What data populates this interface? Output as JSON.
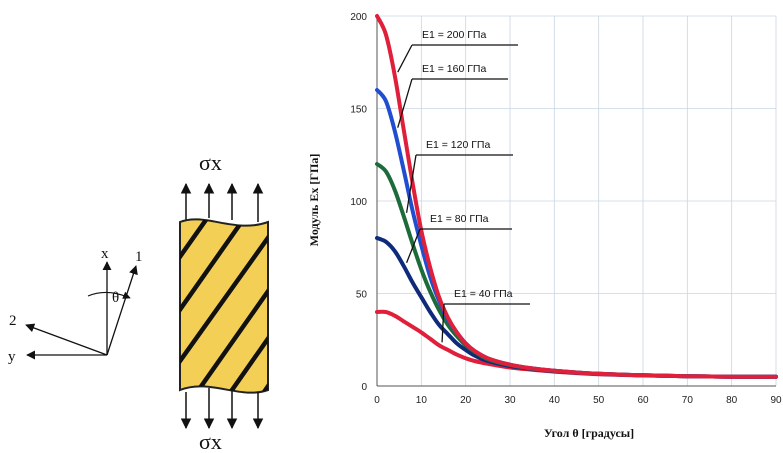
{
  "diagram": {
    "axis_x": "x",
    "axis_y": "y",
    "axis_1": "1",
    "axis_2": "2",
    "angle": "θ",
    "stress_top": "σx",
    "stress_bottom": "σx",
    "colors": {
      "lamina": "#f3cf56",
      "lamina_edge": "#222222"
    }
  },
  "chart_data": {
    "type": "line",
    "xlabel": "Угол  θ  [градусы]",
    "ylabel": "Модуль  Ex  [ГПа]",
    "xlim": [
      0,
      90
    ],
    "ylim": [
      0,
      200
    ],
    "xticks": [
      "0",
      "10",
      "20",
      "30",
      "40",
      "50",
      "60",
      "70",
      "80",
      "90"
    ],
    "yticks": [
      "0",
      "50",
      "100",
      "150",
      "200"
    ],
    "grid": true,
    "x": [
      0,
      2,
      4,
      6,
      8,
      10,
      12,
      14,
      16,
      18,
      20,
      22,
      25,
      30,
      35,
      40,
      45,
      50,
      60,
      70,
      80,
      90
    ],
    "series": [
      {
        "name": "E1 = 200 ГПа",
        "color": "#e0203a",
        "values": [
          200,
          190,
          168,
          139,
          110,
          84,
          64,
          48,
          37,
          29,
          23,
          19,
          15,
          11.5,
          9.5,
          8.2,
          7.3,
          6.6,
          5.8,
          5.3,
          5.0,
          5.0
        ]
      },
      {
        "name": "E1 = 160 ГПа",
        "color": "#1f4fd0",
        "values": [
          160,
          154,
          138,
          117,
          95,
          76,
          59,
          46,
          36,
          29,
          23,
          19,
          15,
          11.5,
          9.5,
          8.2,
          7.3,
          6.6,
          5.8,
          5.3,
          5.0,
          5.0
        ]
      },
      {
        "name": "E1 = 120 ГПа",
        "color": "#1d6b3a",
        "values": [
          120,
          116,
          106,
          92,
          77,
          63,
          51,
          41,
          33,
          27,
          22,
          18.5,
          14.5,
          11.3,
          9.4,
          8.2,
          7.3,
          6.6,
          5.8,
          5.3,
          5.0,
          5.0
        ]
      },
      {
        "name": "E1 = 80 ГПа",
        "color": "#0f2a7a",
        "values": [
          80,
          78,
          73,
          65,
          56,
          48,
          40,
          33,
          28,
          23,
          19.5,
          16.5,
          13.5,
          10.8,
          9.2,
          8.0,
          7.2,
          6.5,
          5.8,
          5.3,
          5.0,
          5.0
        ]
      },
      {
        "name": "E1 = 40 ГПа",
        "color": "#e0203a",
        "values": [
          40,
          40,
          38,
          35,
          32,
          29,
          25.5,
          22,
          19.5,
          17,
          15,
          13.5,
          12,
          10,
          8.8,
          7.8,
          7.0,
          6.4,
          5.7,
          5.3,
          5.0,
          5.0
        ]
      }
    ],
    "legend": [
      {
        "text": "E1 = 200 ГПа",
        "series": 0
      },
      {
        "text": "E1 = 160 ГПа",
        "series": 1
      },
      {
        "text": "E1 = 120 ГПа",
        "series": 2
      },
      {
        "text": "E1 = 80 ГПа",
        "series": 3
      },
      {
        "text": "E1 = 40 ГПа",
        "series": 4
      }
    ]
  }
}
